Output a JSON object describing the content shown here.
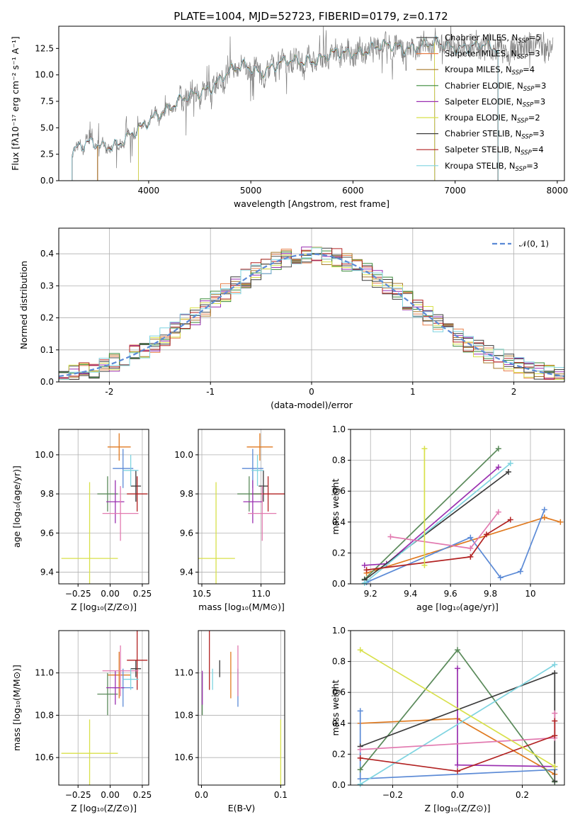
{
  "figure": {
    "title": "PLATE=1004, MJD=52723, FIBERID=0179, z=0.172"
  },
  "chart_data": [
    {
      "id": "spectrum",
      "type": "line",
      "xlabel": "wavelength [Angstrom, rest frame]",
      "ylabel": "Flux [fλ10⁻¹⁷ erg cm⁻² s⁻¹ A⁻¹]",
      "xlim": [
        3120,
        8070
      ],
      "ylim": [
        0,
        14.6
      ],
      "xticks": [
        4000,
        5000,
        6000,
        7000,
        8000
      ],
      "yticks": [
        0.0,
        2.5,
        5.0,
        7.5,
        10.0,
        12.5
      ],
      "legend_position": "right",
      "data_color": "#7f7f7f",
      "model_anchor_x": [
        3250,
        3400,
        3550,
        3700,
        3850,
        3950,
        4050,
        4200,
        4350,
        4500,
        4650,
        4800,
        4950,
        5100,
        5300,
        5500,
        5700,
        5900,
        6100,
        6300,
        6500,
        6700,
        6900,
        7100,
        7300,
        7420
      ],
      "model_anchor_y": [
        2.8,
        3.4,
        3.3,
        3.6,
        4.3,
        5.0,
        6.2,
        7.0,
        7.6,
        8.3,
        9.3,
        10.3,
        10.8,
        10.4,
        11.0,
        11.4,
        11.6,
        12.0,
        12.4,
        12.6,
        12.7,
        12.8,
        12.8,
        12.7,
        12.6,
        12.5
      ],
      "series": [
        {
          "label": "Chabrier MILES, N",
          "sub": "SSP",
          "suffix": "=5",
          "color": "#4d4d4d",
          "x": [
            3500,
            7420
          ]
        },
        {
          "label": "Salpeter MILES, N",
          "sub": "SSP",
          "suffix": "=3",
          "color": "#e8804c",
          "x": [
            3500,
            7420
          ]
        },
        {
          "label": "Kroupa MILES, N",
          "sub": "SSP",
          "suffix": "=4",
          "color": "#a8782a",
          "x": [
            3500,
            7420
          ]
        },
        {
          "label": "Chabrier ELODIE, N",
          "sub": "SSP",
          "suffix": "=3",
          "color": "#3a8a3a",
          "x": [
            3900,
            6800
          ]
        },
        {
          "label": "Salpeter ELODIE, N",
          "sub": "SSP",
          "suffix": "=3",
          "color": "#9a2fb0",
          "x": [
            3900,
            6800
          ]
        },
        {
          "label": "Kroupa ELODIE, N",
          "sub": "SSP",
          "suffix": "=2",
          "color": "#d8e04a",
          "x": [
            3900,
            6800
          ]
        },
        {
          "label": "Chabrier STELIB, N",
          "sub": "SSP",
          "suffix": "=3",
          "color": "#3c3c3c",
          "x": [
            3250,
            7420
          ]
        },
        {
          "label": "Salpeter STELIB, N",
          "sub": "SSP",
          "suffix": "=4",
          "color": "#b22222",
          "x": [
            3250,
            7420
          ]
        },
        {
          "label": "Kroupa STELIB, N",
          "sub": "SSP",
          "suffix": "=3",
          "color": "#7fd4e0",
          "x": [
            3250,
            7420
          ]
        }
      ]
    },
    {
      "id": "residuals",
      "type": "histogram",
      "xlabel": "(data-model)/error",
      "ylabel": "Normed distribution",
      "xlim": [
        -2.5,
        2.5
      ],
      "ylim": [
        0,
        0.48
      ],
      "xticks": [
        -2,
        -1,
        0,
        1,
        2
      ],
      "yticks": [
        0.0,
        0.1,
        0.2,
        0.3,
        0.4
      ],
      "bin_edges_from": -2.5,
      "bin_width": 0.1,
      "legend_position": "top-right",
      "reference_curve": {
        "label": "𝒩(0, 1)",
        "color": "#5b8ad6",
        "mean": 0,
        "sigma": 1
      },
      "hist_colors": [
        "#4d4d4d",
        "#e8804c",
        "#a8782a",
        "#3a8a3a",
        "#9a2fb0",
        "#d8e04a",
        "#3c3c3c",
        "#b22222",
        "#7fd4e0"
      ]
    },
    {
      "id": "age_vs_Z",
      "type": "errorbar",
      "xlabel": "Z [log₁₀(Z/Z⊙)]",
      "ylabel": "age  [log₁₀(age/yr)]",
      "xlim": [
        -0.4,
        0.3
      ],
      "ylim": [
        9.34,
        10.13
      ],
      "xticks": [
        -0.25,
        0.0,
        0.25
      ],
      "xticklabels": [
        "−0.25",
        "0.00",
        "0.25"
      ],
      "yticks": [
        9.4,
        9.6,
        9.8,
        10.0
      ],
      "points": [
        {
          "color": "#e07a20",
          "x": 0.07,
          "xerr": 0.09,
          "y": 10.04,
          "yerr": 0.07
        },
        {
          "color": "#5b8ad6",
          "x": 0.1,
          "xerr": 0.08,
          "y": 9.93,
          "yerr": 0.1
        },
        {
          "color": "#3a3a3a",
          "x": 0.2,
          "xerr": 0.04,
          "y": 9.84,
          "yerr": 0.08
        },
        {
          "color": "#b22222",
          "x": 0.21,
          "xerr": 0.08,
          "y": 9.8,
          "yerr": 0.09
        },
        {
          "color": "#5a8a5a",
          "x": -0.02,
          "xerr": 0.08,
          "y": 9.8,
          "yerr": 0.09
        },
        {
          "color": "#9a2fb0",
          "x": 0.04,
          "xerr": 0.07,
          "y": 9.76,
          "yerr": 0.11
        },
        {
          "color": "#e27ab0",
          "x": 0.08,
          "xerr": 0.14,
          "y": 9.7,
          "yerr": 0.14
        },
        {
          "color": "#7fd4e0",
          "x": 0.16,
          "xerr": 0.06,
          "y": 9.92,
          "yerr": 0.08
        },
        {
          "color": "#d8e04a",
          "x": -0.16,
          "xerr": 0.22,
          "y": 9.47,
          "yerr": 0.39
        }
      ]
    },
    {
      "id": "age_vs_mass",
      "type": "errorbar",
      "xlabel": "mass [log₁₀(M/M⊙)]",
      "ylabel": "",
      "xlim": [
        10.47,
        11.2
      ],
      "ylim": [
        9.34,
        10.13
      ],
      "xticks": [
        10.5,
        11.0
      ],
      "xticklabels": [
        "10.5",
        "11.0"
      ],
      "yticks": [
        9.4,
        9.6,
        9.8,
        10.0
      ],
      "points": [
        {
          "color": "#e07a20",
          "x": 10.99,
          "xerr": 0.11,
          "y": 10.04,
          "yerr": 0.07
        },
        {
          "color": "#5b8ad6",
          "x": 10.93,
          "xerr": 0.09,
          "y": 9.93,
          "yerr": 0.1
        },
        {
          "color": "#3a3a3a",
          "x": 11.02,
          "xerr": 0.04,
          "y": 9.84,
          "yerr": 0.08
        },
        {
          "color": "#b22222",
          "x": 11.06,
          "xerr": 0.14,
          "y": 9.8,
          "yerr": 0.09
        },
        {
          "color": "#5a8a5a",
          "x": 10.9,
          "xerr": 0.1,
          "y": 9.8,
          "yerr": 0.09
        },
        {
          "color": "#9a2fb0",
          "x": 10.93,
          "xerr": 0.08,
          "y": 9.76,
          "yerr": 0.11
        },
        {
          "color": "#e27ab0",
          "x": 11.01,
          "xerr": 0.12,
          "y": 9.7,
          "yerr": 0.14
        },
        {
          "color": "#7fd4e0",
          "x": 10.97,
          "xerr": 0.05,
          "y": 9.92,
          "yerr": 0.08
        },
        {
          "color": "#d8e04a",
          "x": 10.62,
          "xerr": 0.16,
          "y": 9.47,
          "yerr": 0.39
        }
      ]
    },
    {
      "id": "weight_vs_age",
      "type": "line",
      "xlabel": "age  [log₁₀(age/yr)]",
      "ylabel": "mass weight",
      "xlim": [
        9.1,
        10.17
      ],
      "ylim": [
        0,
        1.0
      ],
      "xticks": [
        9.2,
        9.4,
        9.6,
        9.8,
        10.0
      ],
      "yticks": [
        0.0,
        0.2,
        0.4,
        0.6,
        0.8,
        1.0
      ],
      "series": [
        {
          "color": "#e07a20",
          "x": [
            9.18,
            10.07,
            10.15
          ],
          "y": [
            0.07,
            0.43,
            0.4
          ]
        },
        {
          "color": "#5b8ad6",
          "x": [
            9.18,
            9.7,
            9.85,
            9.95,
            10.07
          ],
          "y": [
            0.01,
            0.3,
            0.04,
            0.08,
            0.48
          ]
        },
        {
          "color": "#5a8a5a",
          "x": [
            9.17,
            9.84
          ],
          "y": [
            0.03,
            0.875
          ]
        },
        {
          "color": "#9a2fb0",
          "x": [
            9.17,
            9.28,
            9.84
          ],
          "y": [
            0.12,
            0.13,
            0.755
          ]
        },
        {
          "color": "#3a3a3a",
          "x": [
            9.17,
            9.89
          ],
          "y": [
            0.025,
            0.725
          ]
        },
        {
          "color": "#7fd4e0",
          "x": [
            9.17,
            9.9
          ],
          "y": [
            0.005,
            0.78
          ]
        },
        {
          "color": "#e27ab0",
          "x": [
            9.3,
            9.7,
            9.84
          ],
          "y": [
            0.305,
            0.23,
            0.465
          ]
        },
        {
          "color": "#b22222",
          "x": [
            9.18,
            9.7,
            9.78,
            9.9
          ],
          "y": [
            0.09,
            0.175,
            0.32,
            0.415
          ]
        },
        {
          "color": "#d8e04a",
          "x": [
            9.47,
            9.47
          ],
          "y": [
            0.12,
            0.875
          ]
        }
      ]
    },
    {
      "id": "mass_vs_Z",
      "type": "errorbar",
      "xlabel": "Z [log₁₀(Z/Z⊙)]",
      "ylabel": "mass [log₁₀(M/M⊙)]",
      "xlim": [
        -0.4,
        0.3
      ],
      "ylim": [
        10.47,
        11.2
      ],
      "xticks": [
        -0.25,
        0.0,
        0.25
      ],
      "xticklabels": [
        "−0.25",
        "0.00",
        "0.25"
      ],
      "yticks": [
        10.6,
        10.8,
        11.0
      ],
      "points": [
        {
          "color": "#e07a20",
          "x": 0.07,
          "xerr": 0.09,
          "y": 10.99,
          "yerr": 0.11
        },
        {
          "color": "#5b8ad6",
          "x": 0.1,
          "xerr": 0.08,
          "y": 10.93,
          "yerr": 0.09
        },
        {
          "color": "#3a3a3a",
          "x": 0.2,
          "xerr": 0.04,
          "y": 11.02,
          "yerr": 0.04
        },
        {
          "color": "#b22222",
          "x": 0.21,
          "xerr": 0.08,
          "y": 11.06,
          "yerr": 0.14
        },
        {
          "color": "#5a8a5a",
          "x": -0.02,
          "xerr": 0.08,
          "y": 10.9,
          "yerr": 0.1
        },
        {
          "color": "#9a2fb0",
          "x": 0.04,
          "xerr": 0.07,
          "y": 10.93,
          "yerr": 0.08
        },
        {
          "color": "#e27ab0",
          "x": 0.08,
          "xerr": 0.14,
          "y": 11.01,
          "yerr": 0.12
        },
        {
          "color": "#7fd4e0",
          "x": 0.16,
          "xerr": 0.06,
          "y": 10.97,
          "yerr": 0.05
        },
        {
          "color": "#d8e04a",
          "x": -0.16,
          "xerr": 0.22,
          "y": 10.62,
          "yerr": 0.16
        }
      ]
    },
    {
      "id": "mass_vs_ebv",
      "type": "errorbar",
      "xlabel": "E(B-V)",
      "ylabel": "",
      "xlim": [
        -0.004,
        0.105
      ],
      "ylim": [
        10.47,
        11.2
      ],
      "xticks": [
        0.0,
        0.1
      ],
      "xticklabels": [
        "0.0",
        "0.1"
      ],
      "yticks": [
        10.6,
        10.8,
        11.0
      ],
      "points": [
        {
          "color": "#e07a20",
          "x": 0.037,
          "xerr": 0,
          "y": 10.99,
          "yerr": 0.11
        },
        {
          "color": "#5b8ad6",
          "x": 0.046,
          "xerr": 0,
          "y": 10.93,
          "yerr": 0.09
        },
        {
          "color": "#3a3a3a",
          "x": 0.023,
          "xerr": 0,
          "y": 11.02,
          "yerr": 0.04
        },
        {
          "color": "#b22222",
          "x": 0.01,
          "xerr": 0,
          "y": 11.06,
          "yerr": 0.14
        },
        {
          "color": "#5a8a5a",
          "x": 0.001,
          "xerr": 0,
          "y": 10.9,
          "yerr": 0.1
        },
        {
          "color": "#9a2fb0",
          "x": 0.001,
          "xerr": 0,
          "y": 10.93,
          "yerr": 0.08
        },
        {
          "color": "#e27ab0",
          "x": 0.046,
          "xerr": 0,
          "y": 11.01,
          "yerr": 0.12
        },
        {
          "color": "#7fd4e0",
          "x": 0.014,
          "xerr": 0,
          "y": 10.97,
          "yerr": 0.05
        },
        {
          "color": "#d8e04a",
          "x": 0.1,
          "xerr": 0,
          "y": 10.62,
          "yerr": 0.16
        }
      ]
    },
    {
      "id": "weight_vs_Z",
      "type": "line",
      "xlabel": "Z [log₁₀(Z/Z⊙)]",
      "ylabel": "mass weight",
      "xlim": [
        -0.33,
        0.33
      ],
      "ylim": [
        0,
        1.0
      ],
      "xticks": [
        -0.2,
        0.0,
        0.2
      ],
      "xticklabels": [
        "−0.2",
        "0.0",
        "0.2"
      ],
      "yticks": [
        0.0,
        0.2,
        0.4,
        0.6,
        0.8,
        1.0
      ],
      "series": [
        {
          "color": "#e07a20",
          "x": [
            -0.3,
            0.0,
            0.3
          ],
          "y": [
            0.4,
            0.43,
            0.07
          ]
        },
        {
          "color": "#5b8ad6",
          "x": [
            -0.3,
            -0.3,
            0.3
          ],
          "y": [
            0.48,
            0.04,
            0.1
          ]
        },
        {
          "color": "#5a8a5a",
          "x": [
            -0.3,
            0.0,
            0.3
          ],
          "y": [
            0.1,
            0.875,
            0.02
          ]
        },
        {
          "color": "#9a2fb0",
          "x": [
            0.0,
            0.0,
            0.3
          ],
          "y": [
            0.755,
            0.13,
            0.12
          ]
        },
        {
          "color": "#3a3a3a",
          "x": [
            -0.3,
            0.3,
            0.3
          ],
          "y": [
            0.25,
            0.725,
            0.025
          ]
        },
        {
          "color": "#7fd4e0",
          "x": [
            -0.3,
            0.3
          ],
          "y": [
            0.005,
            0.78
          ]
        },
        {
          "color": "#e27ab0",
          "x": [
            -0.3,
            0.3,
            0.3
          ],
          "y": [
            0.23,
            0.305,
            0.465
          ]
        },
        {
          "color": "#b22222",
          "x": [
            -0.3,
            0.0,
            0.3,
            0.3
          ],
          "y": [
            0.175,
            0.09,
            0.32,
            0.415
          ]
        },
        {
          "color": "#d8e04a",
          "x": [
            -0.3,
            0.3
          ],
          "y": [
            0.875,
            0.12
          ]
        }
      ]
    }
  ]
}
